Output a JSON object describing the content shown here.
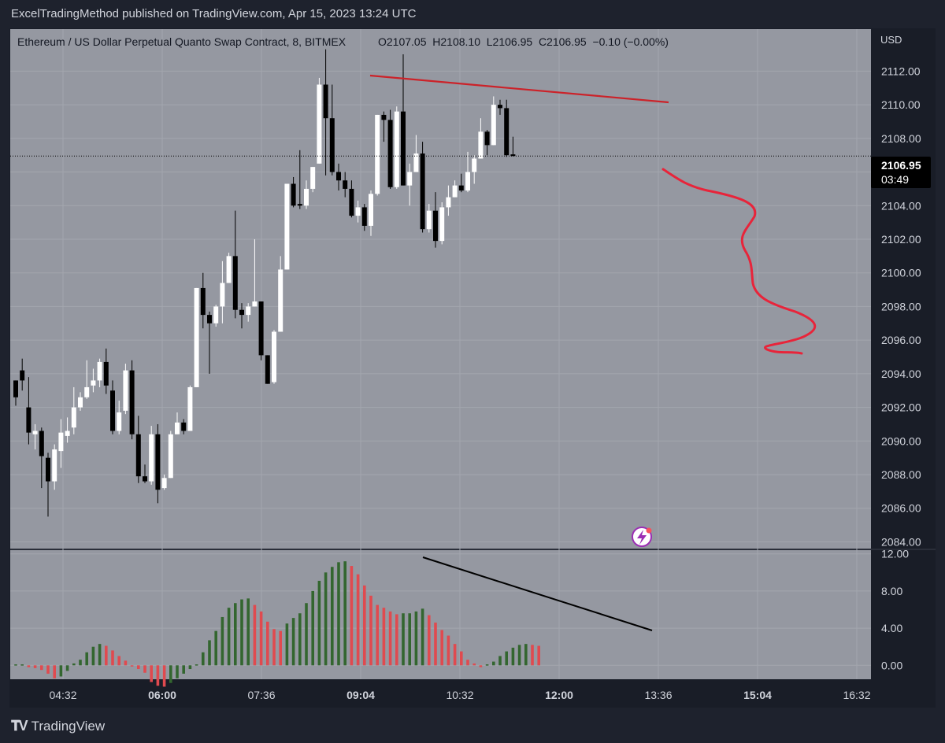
{
  "header": {
    "publisher": "ExcelTradingMethod published on TradingView.com, Apr 15, 2023 13:24 UTC"
  },
  "footer": {
    "brand": "TradingView"
  },
  "colors": {
    "pane_bg": "#9598a1",
    "up_candle": "#ffffff",
    "down_candle": "#000000",
    "hist_green": "#33662f",
    "hist_red": "#e04a4f",
    "trendline_red": "#cc2229",
    "trendline_black": "#000000",
    "projection_red": "#e8243a"
  },
  "chart_data": [
    {
      "type": "candlestick",
      "title": "Ethereum / US Dollar Perpetual Quanto Swap Contract, 8, BITMEX",
      "ohlc_label": "O2107.05  H2108.10  L2106.95  C2106.95  −0.10 (−0.00%)",
      "currency": "USD",
      "last_price": "2106.95",
      "countdown": "03:49",
      "ylim": [
        2083.6,
        2114.5
      ],
      "y_ticks": [
        "2084.00",
        "2086.00",
        "2088.00",
        "2090.00",
        "2092.00",
        "2094.00",
        "2096.00",
        "2098.00",
        "2100.00",
        "2102.00",
        "2104.00",
        "2106.00",
        "2108.00",
        "2110.00",
        "2112.00"
      ],
      "x_ticks": [
        {
          "label": "04:32",
          "bold": false
        },
        {
          "label": "06:00",
          "bold": true
        },
        {
          "label": "07:36",
          "bold": false
        },
        {
          "label": "09:04",
          "bold": true
        },
        {
          "label": "10:32",
          "bold": false
        },
        {
          "label": "12:00",
          "bold": true
        },
        {
          "label": "13:36",
          "bold": false
        },
        {
          "label": "15:04",
          "bold": true
        },
        {
          "label": "16:32",
          "bold": false
        }
      ],
      "candles": [
        [
          2093.6,
          2092.6,
          2093.6,
          2092.1
        ],
        [
          2094.2,
          2093.6,
          2094.9,
          2093.0
        ],
        [
          2092.0,
          2090.5,
          2093.8,
          2089.8
        ],
        [
          2090.4,
          2090.6,
          2091.0,
          2089.5
        ],
        [
          2090.6,
          2089.1,
          2090.8,
          2087.2
        ],
        [
          2089.0,
          2087.6,
          2089.3,
          2085.5
        ],
        [
          2087.6,
          2089.5,
          2089.8,
          2087.1
        ],
        [
          2089.4,
          2090.5,
          2091.3,
          2088.4
        ],
        [
          2090.3,
          2090.6,
          2091.4,
          2089.9
        ],
        [
          2090.8,
          2092.0,
          2093.2,
          2090.4
        ],
        [
          2092.0,
          2092.6,
          2092.9,
          2091.8
        ],
        [
          2092.6,
          2093.2,
          2094.8,
          2092.5
        ],
        [
          2093.3,
          2093.6,
          2094.3,
          2092.9
        ],
        [
          2093.6,
          2094.7,
          2094.9,
          2093.2
        ],
        [
          2094.7,
          2093.3,
          2095.5,
          2092.8
        ],
        [
          2093.0,
          2090.6,
          2093.6,
          2090.4
        ],
        [
          2090.6,
          2091.7,
          2092.4,
          2090.4
        ],
        [
          2091.8,
          2094.2,
          2094.6,
          2091.6
        ],
        [
          2094.2,
          2090.4,
          2094.8,
          2090.1
        ],
        [
          2090.4,
          2087.9,
          2091.5,
          2087.5
        ],
        [
          2087.9,
          2087.6,
          2088.6,
          2087.5
        ],
        [
          2087.6,
          2090.4,
          2090.9,
          2087.4
        ],
        [
          2090.4,
          2087.1,
          2091.0,
          2086.3
        ],
        [
          2087.2,
          2087.8,
          2088.0,
          2087.1
        ],
        [
          2087.8,
          2090.4,
          2090.6,
          2087.8
        ],
        [
          2090.4,
          2091.1,
          2091.7,
          2090.4
        ],
        [
          2091.1,
          2090.6,
          2091.3,
          2090.4
        ],
        [
          2090.6,
          2093.2,
          2093.3,
          2090.6
        ],
        [
          2093.2,
          2099.1,
          2099.1,
          2093.2
        ],
        [
          2099.1,
          2097.5,
          2100.0,
          2096.7
        ],
        [
          2097.5,
          2097.0,
          2097.7,
          2094.0
        ],
        [
          2097.0,
          2098.0,
          2098.1,
          2096.8
        ],
        [
          2098.0,
          2099.4,
          2100.7,
          2097.0
        ],
        [
          2099.4,
          2101.0,
          2101.2,
          2099.4
        ],
        [
          2101.0,
          2097.8,
          2103.7,
          2097.3
        ],
        [
          2097.8,
          2097.5,
          2098.2,
          2096.7
        ],
        [
          2097.5,
          2098.0,
          2098.2,
          2097.1
        ],
        [
          2098.0,
          2098.3,
          2102.0,
          2098.0
        ],
        [
          2098.3,
          2095.1,
          2098.3,
          2094.8
        ],
        [
          2095.1,
          2093.4,
          2095.1,
          2093.4
        ],
        [
          2093.5,
          2096.5,
          2096.6,
          2093.4
        ],
        [
          2096.5,
          2100.2,
          2101.0,
          2096.5
        ],
        [
          2100.2,
          2105.3,
          2105.3,
          2100.2
        ],
        [
          2105.3,
          2104.0,
          2105.7,
          2103.9
        ],
        [
          2104.1,
          2104.0,
          2107.3,
          2103.8
        ],
        [
          2104.0,
          2105.0,
          2105.5,
          2103.8
        ],
        [
          2105.0,
          2106.3,
          2106.3,
          2104.8
        ],
        [
          2106.5,
          2111.2,
          2111.6,
          2106.5
        ],
        [
          2111.2,
          2109.2,
          2113.3,
          2105.8
        ],
        [
          2109.2,
          2106.0,
          2111.2,
          2105.8
        ],
        [
          2106.0,
          2105.5,
          2106.5,
          2104.9
        ],
        [
          2105.5,
          2105.0,
          2106.0,
          2104.5
        ],
        [
          2105.0,
          2103.4,
          2105.5,
          2103.3
        ],
        [
          2103.4,
          2103.9,
          2104.3,
          2103.0
        ],
        [
          2103.9,
          2102.8,
          2104.1,
          2102.5
        ],
        [
          2102.8,
          2104.7,
          2104.9,
          2102.2
        ],
        [
          2104.7,
          2109.4,
          2109.4,
          2104.6
        ],
        [
          2109.4,
          2109.1,
          2109.6,
          2107.8
        ],
        [
          2109.1,
          2105.1,
          2109.7,
          2105.0
        ],
        [
          2105.1,
          2109.6,
          2109.9,
          2105.0
        ],
        [
          2109.6,
          2105.2,
          2113.0,
          2105.2
        ],
        [
          2105.2,
          2106.0,
          2106.5,
          2104.0
        ],
        [
          2106.0,
          2107.1,
          2108.2,
          2106.0
        ],
        [
          2107.1,
          2102.6,
          2107.8,
          2102.4
        ],
        [
          2102.6,
          2103.7,
          2104.1,
          2102.4
        ],
        [
          2103.7,
          2101.9,
          2104.8,
          2101.5
        ],
        [
          2101.9,
          2103.9,
          2104.2,
          2101.7
        ],
        [
          2103.9,
          2104.5,
          2105.2,
          2103.4
        ],
        [
          2104.5,
          2105.2,
          2105.5,
          2104.5
        ],
        [
          2105.2,
          2104.9,
          2105.9,
          2104.8
        ],
        [
          2104.9,
          2106.0,
          2107.2,
          2104.8
        ],
        [
          2106.0,
          2106.8,
          2107.0,
          2105.3
        ],
        [
          2106.8,
          2108.4,
          2109.2,
          2106.8
        ],
        [
          2108.4,
          2107.6,
          2108.5,
          2107.0
        ],
        [
          2107.6,
          2110.0,
          2110.5,
          2107.6
        ],
        [
          2110.0,
          2109.8,
          2110.3,
          2109.4
        ],
        [
          2109.8,
          2107.0,
          2110.3,
          2106.9
        ],
        [
          2107.05,
          2106.95,
          2108.1,
          2106.95
        ]
      ]
    },
    {
      "type": "bar",
      "ylim": [
        -1.5,
        12.4
      ],
      "y_ticks": [
        "0.00",
        "4.00",
        "8.00",
        "12.00"
      ],
      "values": [
        0.1,
        0.1,
        -0.2,
        -0.3,
        -0.5,
        -0.9,
        -1.4,
        -1.2,
        -0.6,
        0.2,
        0.6,
        1.4,
        2.0,
        2.3,
        2.1,
        1.6,
        1.0,
        0.5,
        -0.1,
        -0.4,
        -0.8,
        -1.8,
        -2.2,
        -2.3,
        -1.9,
        -1.4,
        -0.9,
        -0.4,
        0.1,
        1.4,
        2.7,
        3.7,
        5.2,
        6.2,
        6.7,
        7.1,
        7.2,
        6.5,
        5.8,
        4.7,
        3.9,
        3.7,
        4.5,
        5.1,
        5.6,
        6.7,
        8.0,
        9.1,
        10.0,
        10.6,
        11.1,
        11.2,
        10.7,
        9.8,
        8.6,
        7.5,
        6.5,
        6.2,
        5.8,
        5.5,
        5.6,
        5.6,
        5.8,
        6.1,
        5.4,
        4.6,
        3.8,
        3.2,
        2.3,
        1.5,
        0.6,
        0.2,
        -0.2,
        0.1,
        0.4,
        1.0,
        1.5,
        1.9,
        2.2,
        2.3,
        2.2,
        2.1
      ]
    }
  ]
}
